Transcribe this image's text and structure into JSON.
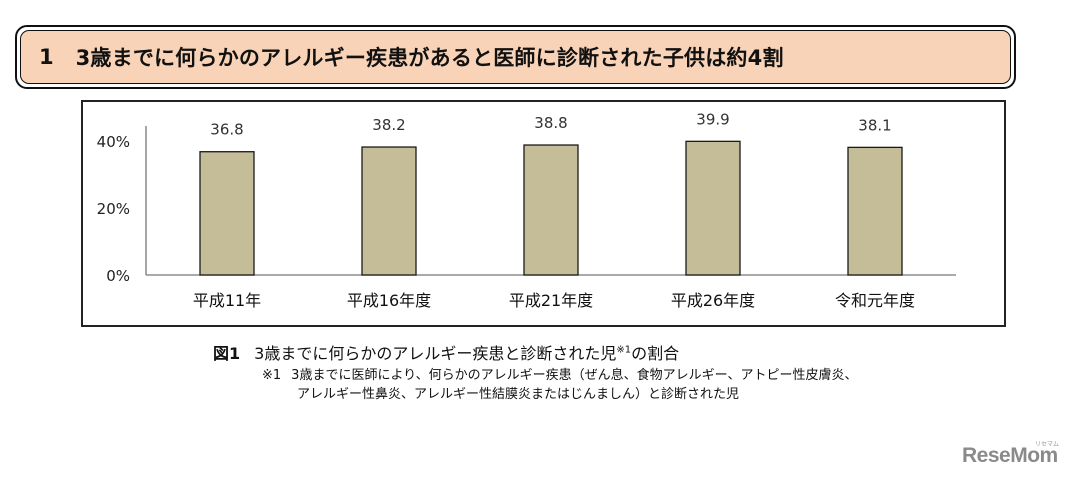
{
  "header": {
    "number": "1",
    "title": "3歳までに何らかのアレルギー疾患があると医師に診断された子供は約4割"
  },
  "chart_data": {
    "type": "bar",
    "title": "",
    "categories": [
      "平成11年",
      "平成16年度",
      "平成21年度",
      "平成26年度",
      "令和元年度"
    ],
    "values": [
      36.8,
      38.2,
      38.8,
      39.9,
      38.1
    ],
    "data_labels": [
      "36.8",
      "38.2",
      "38.8",
      "39.9",
      "38.1"
    ],
    "xlabel": "",
    "ylabel": "",
    "ylim": [
      0,
      40
    ],
    "yticks": [
      0,
      20,
      40
    ],
    "ytick_labels": [
      "0%",
      "20%",
      "40%"
    ],
    "grid": false,
    "legend": null,
    "bar_color": "#c4bd97",
    "bar_edge_color": "#1a1a1a"
  },
  "caption": {
    "figure_label": "図1",
    "text": "3歳までに何らかのアレルギー疾患と診断された児",
    "superscript": "※1",
    "text_after": "の割合"
  },
  "notes": {
    "mark": "※1",
    "line1": "3歳までに医師により、何らかのアレルギー疾患（ぜん息、食物アレルギー、アトピー性皮膚炎、",
    "line2": "アレルギー性鼻炎、アレルギー性結膜炎またはじんましん）と診断された児"
  },
  "watermark": {
    "text": "ReseMom",
    "sub": "リセマム"
  }
}
